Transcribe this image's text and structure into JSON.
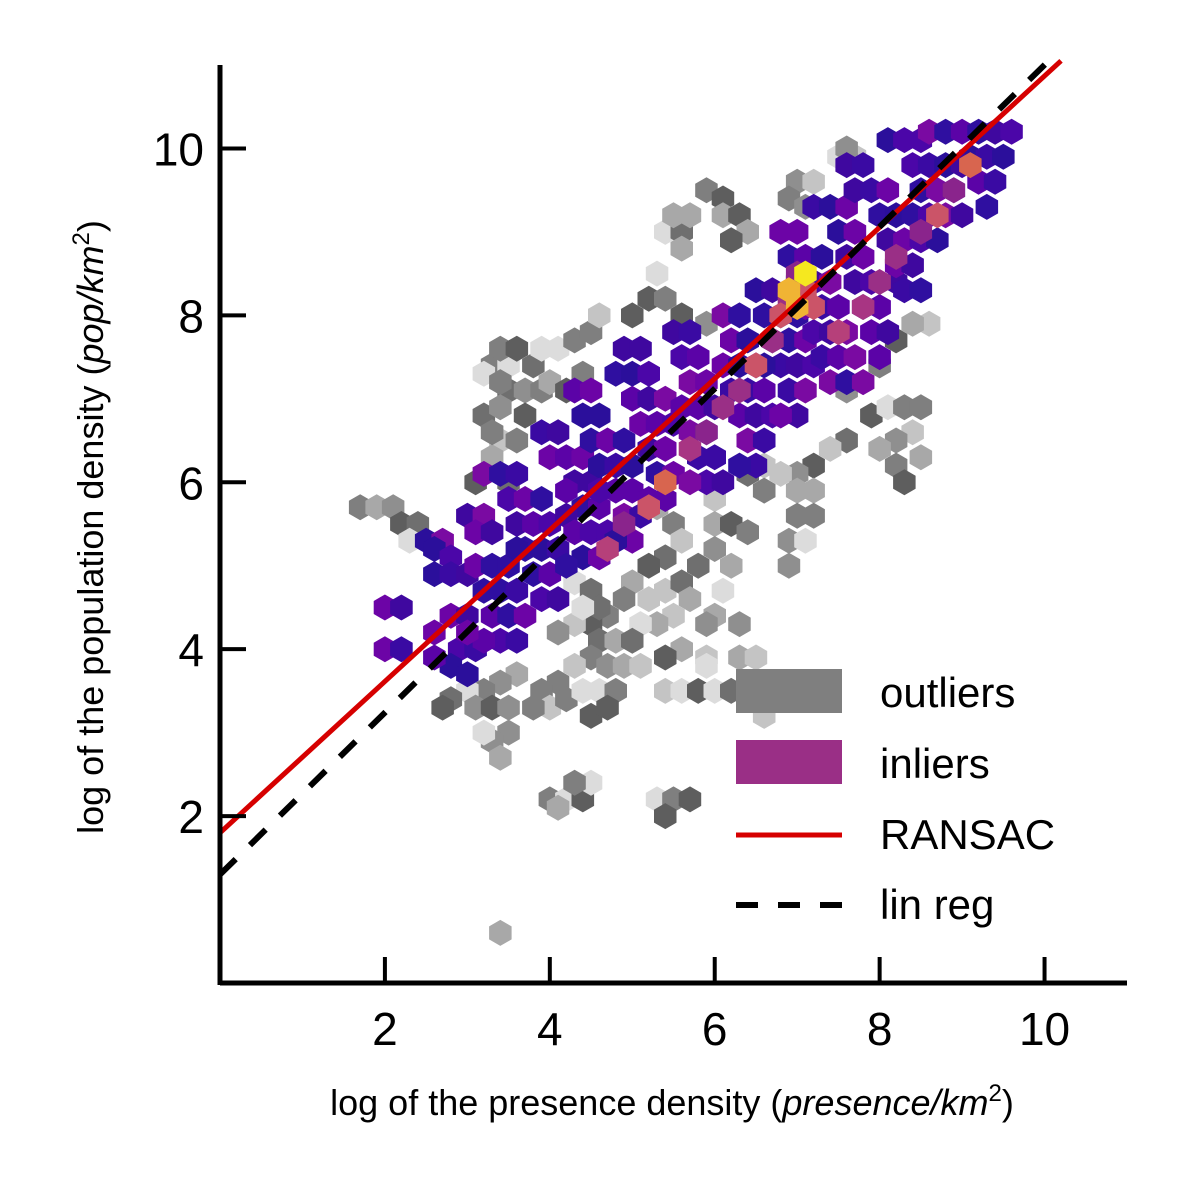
{
  "chart_data": {
    "type": "hexbin",
    "xlabel": {
      "prefix": "log of the presence density (",
      "unit": "presence/km",
      "exp": "2",
      "suffix": ")"
    },
    "ylabel": {
      "prefix": "log of the population density (",
      "unit": "pop/km",
      "exp": "2",
      "suffix": ")"
    },
    "xlim": [
      0,
      11
    ],
    "ylim": [
      0,
      11
    ],
    "xticks": [
      "2",
      "4",
      "6",
      "8",
      "10"
    ],
    "yticks": [
      "2",
      "4",
      "6",
      "8",
      "10"
    ],
    "grid": false,
    "legend": {
      "placement": "bottom-right",
      "entries": [
        {
          "label": "outliers",
          "kind": "patch",
          "color": "#7f7f7f"
        },
        {
          "label": "inliers",
          "kind": "patch",
          "color": "#9a2f86"
        },
        {
          "label": "RANSAC",
          "kind": "line",
          "color": "#d60000"
        },
        {
          "label": "lin reg",
          "kind": "dashed-line",
          "color": "#000000"
        }
      ]
    },
    "lines": [
      {
        "name": "RANSAC",
        "color": "#d60000",
        "x": [
          0,
          10.2
        ],
        "y": [
          1.8,
          11.05
        ]
      },
      {
        "name": "lin reg",
        "color": "#000000",
        "x": [
          0,
          10.05
        ],
        "y": [
          1.3,
          11.05
        ]
      }
    ],
    "inliers": [
      [
        2.0,
        4.5
      ],
      [
        2.2,
        4.5
      ],
      [
        2.0,
        4.0
      ],
      [
        2.2,
        4.0
      ],
      [
        2.5,
        5.3
      ],
      [
        2.7,
        5.3
      ],
      [
        2.6,
        5.2
      ],
      [
        2.8,
        5.1
      ],
      [
        2.6,
        4.9
      ],
      [
        2.8,
        4.9
      ],
      [
        3.0,
        4.9
      ],
      [
        2.6,
        4.2
      ],
      [
        2.8,
        4.4
      ],
      [
        3.0,
        4.4
      ],
      [
        2.9,
        4.0
      ],
      [
        3.1,
        4.0
      ],
      [
        2.8,
        3.8
      ],
      [
        3.0,
        3.7
      ],
      [
        2.6,
        3.9
      ],
      [
        3.0,
        5.6
      ],
      [
        3.2,
        5.6
      ],
      [
        3.1,
        5.4
      ],
      [
        3.3,
        5.4
      ],
      [
        3.1,
        5.0
      ],
      [
        3.3,
        5.0
      ],
      [
        3.5,
        5.0
      ],
      [
        3.2,
        4.7
      ],
      [
        3.4,
        4.7
      ],
      [
        3.6,
        4.7
      ],
      [
        3.3,
        4.4
      ],
      [
        3.5,
        4.4
      ],
      [
        3.7,
        4.4
      ],
      [
        3.4,
        4.1
      ],
      [
        3.6,
        4.1
      ],
      [
        3.2,
        4.1
      ],
      [
        3.0,
        4.2
      ],
      [
        3.2,
        6.1
      ],
      [
        3.4,
        6.1
      ],
      [
        3.6,
        6.1
      ],
      [
        3.5,
        5.8
      ],
      [
        3.7,
        5.8
      ],
      [
        3.9,
        5.8
      ],
      [
        3.6,
        5.5
      ],
      [
        3.8,
        5.5
      ],
      [
        4.0,
        5.5
      ],
      [
        3.7,
        5.2
      ],
      [
        3.9,
        5.2
      ],
      [
        4.1,
        5.2
      ],
      [
        3.8,
        4.9
      ],
      [
        4.0,
        4.9
      ],
      [
        3.9,
        4.6
      ],
      [
        4.1,
        4.6
      ],
      [
        3.6,
        5.2
      ],
      [
        3.9,
        6.6
      ],
      [
        4.1,
        6.6
      ],
      [
        4.0,
        6.3
      ],
      [
        4.2,
        6.3
      ],
      [
        4.4,
        6.3
      ],
      [
        4.3,
        6.0
      ],
      [
        4.5,
        6.0
      ],
      [
        4.2,
        5.9
      ],
      [
        4.4,
        5.7
      ],
      [
        4.6,
        5.7
      ],
      [
        4.2,
        5.6
      ],
      [
        4.3,
        5.4
      ],
      [
        4.5,
        5.4
      ],
      [
        4.7,
        5.4
      ],
      [
        4.4,
        5.1
      ],
      [
        4.6,
        5.1
      ],
      [
        4.2,
        5.0
      ],
      [
        4.3,
        7.1
      ],
      [
        4.5,
        7.1
      ],
      [
        4.4,
        6.8
      ],
      [
        4.6,
        6.8
      ],
      [
        4.5,
        6.5
      ],
      [
        4.7,
        6.5
      ],
      [
        4.9,
        6.5
      ],
      [
        4.6,
        6.2
      ],
      [
        4.8,
        6.2
      ],
      [
        5.0,
        6.2
      ],
      [
        4.8,
        5.9
      ],
      [
        5.0,
        5.9
      ],
      [
        4.9,
        5.6
      ],
      [
        5.1,
        5.6
      ],
      [
        5.0,
        5.3
      ],
      [
        4.8,
        5.3
      ],
      [
        4.6,
        5.9
      ],
      [
        4.9,
        7.6
      ],
      [
        5.1,
        7.6
      ],
      [
        4.8,
        7.3
      ],
      [
        5.0,
        7.3
      ],
      [
        5.2,
        7.3
      ],
      [
        5.0,
        7.0
      ],
      [
        5.2,
        7.0
      ],
      [
        5.4,
        7.0
      ],
      [
        5.1,
        6.7
      ],
      [
        5.3,
        6.7
      ],
      [
        5.5,
        6.7
      ],
      [
        5.2,
        6.4
      ],
      [
        5.4,
        6.4
      ],
      [
        5.3,
        6.1
      ],
      [
        5.5,
        6.1
      ],
      [
        5.4,
        5.8
      ],
      [
        5.2,
        5.8
      ],
      [
        5.5,
        7.8
      ],
      [
        5.7,
        7.8
      ],
      [
        5.6,
        7.5
      ],
      [
        5.8,
        7.5
      ],
      [
        5.7,
        7.2
      ],
      [
        5.9,
        7.2
      ],
      [
        5.6,
        6.9
      ],
      [
        5.8,
        6.9
      ],
      [
        6.0,
        6.9
      ],
      [
        5.7,
        6.6
      ],
      [
        5.9,
        6.6
      ],
      [
        5.8,
        6.3
      ],
      [
        6.0,
        6.3
      ],
      [
        5.9,
        6.0
      ],
      [
        6.1,
        6.0
      ],
      [
        5.7,
        6.0
      ],
      [
        6.1,
        8.0
      ],
      [
        6.3,
        8.0
      ],
      [
        6.2,
        7.7
      ],
      [
        6.4,
        7.7
      ],
      [
        6.1,
        7.4
      ],
      [
        6.3,
        7.4
      ],
      [
        6.5,
        7.4
      ],
      [
        6.2,
        7.1
      ],
      [
        6.4,
        7.1
      ],
      [
        6.6,
        7.1
      ],
      [
        6.3,
        6.8
      ],
      [
        6.5,
        6.8
      ],
      [
        6.4,
        6.5
      ],
      [
        6.6,
        6.5
      ],
      [
        6.5,
        6.2
      ],
      [
        6.3,
        6.2
      ],
      [
        6.7,
        6.8
      ],
      [
        6.5,
        8.3
      ],
      [
        6.7,
        8.3
      ],
      [
        6.6,
        8.0
      ],
      [
        6.8,
        8.0
      ],
      [
        7.0,
        8.0
      ],
      [
        6.7,
        7.7
      ],
      [
        6.9,
        7.7
      ],
      [
        7.1,
        7.7
      ],
      [
        6.8,
        7.4
      ],
      [
        7.0,
        7.4
      ],
      [
        7.2,
        7.4
      ],
      [
        6.9,
        7.1
      ],
      [
        7.1,
        7.1
      ],
      [
        7.0,
        6.8
      ],
      [
        6.6,
        7.4
      ],
      [
        6.8,
        6.8
      ],
      [
        6.8,
        9.0
      ],
      [
        7.0,
        9.0
      ],
      [
        6.9,
        8.7
      ],
      [
        7.1,
        8.7
      ],
      [
        7.3,
        8.7
      ],
      [
        7.0,
        8.4
      ],
      [
        7.2,
        8.4
      ],
      [
        7.4,
        8.4
      ],
      [
        7.1,
        8.1
      ],
      [
        7.3,
        8.1
      ],
      [
        7.5,
        8.1
      ],
      [
        7.2,
        7.8
      ],
      [
        7.4,
        7.8
      ],
      [
        7.6,
        7.8
      ],
      [
        7.3,
        7.5
      ],
      [
        7.5,
        7.5
      ],
      [
        7.7,
        7.5
      ],
      [
        7.4,
        7.2
      ],
      [
        7.6,
        7.2
      ],
      [
        7.8,
        7.2
      ],
      [
        7.2,
        9.3
      ],
      [
        7.4,
        9.3
      ],
      [
        7.6,
        9.3
      ],
      [
        7.5,
        9.0
      ],
      [
        7.7,
        9.0
      ],
      [
        7.6,
        8.7
      ],
      [
        7.8,
        8.7
      ],
      [
        7.7,
        8.4
      ],
      [
        7.9,
        8.4
      ],
      [
        7.8,
        8.1
      ],
      [
        8.0,
        8.1
      ],
      [
        7.9,
        7.8
      ],
      [
        8.1,
        7.8
      ],
      [
        8.0,
        7.5
      ],
      [
        8.2,
        8.4
      ],
      [
        7.6,
        9.8
      ],
      [
        7.8,
        9.8
      ],
      [
        7.7,
        9.5
      ],
      [
        7.9,
        9.5
      ],
      [
        8.1,
        9.5
      ],
      [
        8.0,
        9.2
      ],
      [
        8.2,
        9.2
      ],
      [
        8.4,
        9.2
      ],
      [
        8.1,
        8.9
      ],
      [
        8.3,
        8.9
      ],
      [
        8.5,
        8.9
      ],
      [
        8.2,
        8.6
      ],
      [
        8.4,
        8.6
      ],
      [
        8.3,
        8.3
      ],
      [
        8.5,
        8.3
      ],
      [
        8.1,
        10.1
      ],
      [
        8.3,
        10.1
      ],
      [
        8.5,
        10.1
      ],
      [
        8.4,
        9.8
      ],
      [
        8.6,
        9.8
      ],
      [
        8.8,
        9.8
      ],
      [
        8.5,
        9.5
      ],
      [
        8.7,
        9.5
      ],
      [
        8.9,
        9.5
      ],
      [
        8.6,
        9.2
      ],
      [
        8.8,
        9.2
      ],
      [
        9.0,
        9.2
      ],
      [
        8.7,
        8.9
      ],
      [
        8.6,
        10.2
      ],
      [
        8.8,
        10.2
      ],
      [
        9.0,
        10.2
      ],
      [
        9.2,
        10.2
      ],
      [
        9.4,
        10.2
      ],
      [
        9.6,
        10.2
      ],
      [
        9.1,
        9.9
      ],
      [
        9.3,
        9.9
      ],
      [
        9.5,
        9.9
      ],
      [
        9.2,
        9.6
      ],
      [
        9.4,
        9.6
      ],
      [
        9.3,
        9.3
      ],
      [
        9.0,
        9.8
      ]
    ],
    "inlier_hot": [
      [
        7.0,
        8.5
      ],
      [
        7.1,
        8.3
      ],
      [
        6.9,
        8.2
      ],
      [
        6.8,
        8.0
      ],
      [
        7.2,
        8.1
      ],
      [
        6.7,
        7.7
      ],
      [
        6.5,
        7.4
      ],
      [
        6.3,
        7.1
      ],
      [
        6.1,
        6.9
      ],
      [
        5.9,
        6.6
      ],
      [
        5.7,
        6.4
      ],
      [
        8.9,
        9.5
      ],
      [
        8.7,
        9.2
      ],
      [
        8.5,
        9.0
      ],
      [
        9.1,
        9.8
      ],
      [
        8.2,
        8.7
      ],
      [
        8.0,
        8.4
      ],
      [
        7.8,
        8.1
      ],
      [
        7.5,
        7.8
      ],
      [
        5.4,
        6.0
      ],
      [
        5.2,
        5.7
      ],
      [
        4.9,
        5.5
      ],
      [
        4.7,
        5.2
      ]
    ],
    "inlier_peak": [
      [
        7.1,
        8.5
      ],
      [
        6.9,
        8.3
      ],
      [
        7.0,
        8.1
      ]
    ],
    "outliers": [
      [
        1.7,
        5.7
      ],
      [
        1.9,
        5.7
      ],
      [
        2.1,
        5.7
      ],
      [
        2.2,
        5.5
      ],
      [
        2.4,
        5.5
      ],
      [
        2.3,
        5.3
      ],
      [
        3.3,
        7.4
      ],
      [
        3.5,
        7.4
      ],
      [
        3.4,
        7.6
      ],
      [
        3.6,
        7.6
      ],
      [
        3.5,
        7.1
      ],
      [
        3.7,
        7.1
      ],
      [
        3.9,
        7.1
      ],
      [
        3.8,
        7.4
      ],
      [
        3.2,
        7.3
      ],
      [
        3.4,
        7.2
      ],
      [
        3.4,
        6.5
      ],
      [
        3.6,
        6.5
      ],
      [
        3.2,
        6.8
      ],
      [
        3.4,
        6.9
      ],
      [
        3.7,
        6.8
      ],
      [
        3.3,
        6.3
      ],
      [
        3.1,
        6.0
      ],
      [
        3.5,
        6.0
      ],
      [
        3.3,
        6.6
      ],
      [
        3.9,
        7.6
      ],
      [
        4.1,
        7.6
      ],
      [
        4.3,
        7.7
      ],
      [
        4.5,
        7.8
      ],
      [
        4.6,
        8.0
      ],
      [
        4.4,
        7.3
      ],
      [
        4.0,
        7.2
      ],
      [
        4.2,
        7.1
      ],
      [
        5.2,
        8.2
      ],
      [
        5.4,
        8.2
      ],
      [
        5.0,
        8.0
      ],
      [
        5.6,
        8.0
      ],
      [
        5.9,
        7.9
      ],
      [
        5.3,
        8.5
      ],
      [
        5.4,
        9.0
      ],
      [
        5.6,
        9.0
      ],
      [
        5.5,
        9.2
      ],
      [
        5.7,
        9.2
      ],
      [
        5.6,
        8.8
      ],
      [
        5.9,
        9.5
      ],
      [
        6.1,
        9.4
      ],
      [
        6.1,
        9.2
      ],
      [
        6.3,
        9.2
      ],
      [
        6.4,
        9.0
      ],
      [
        6.2,
        8.9
      ],
      [
        7.0,
        9.6
      ],
      [
        7.2,
        9.6
      ],
      [
        6.9,
        9.4
      ],
      [
        7.1,
        9.3
      ],
      [
        7.5,
        9.9
      ],
      [
        7.7,
        9.9
      ],
      [
        7.6,
        10.0
      ],
      [
        8.6,
        7.9
      ],
      [
        8.4,
        7.9
      ],
      [
        8.2,
        7.7
      ],
      [
        8.0,
        7.4
      ],
      [
        7.8,
        7.2
      ],
      [
        7.6,
        7.1
      ],
      [
        7.9,
        6.8
      ],
      [
        8.1,
        6.9
      ],
      [
        8.3,
        6.9
      ],
      [
        8.5,
        6.9
      ],
      [
        8.4,
        6.6
      ],
      [
        8.2,
        6.5
      ],
      [
        8.0,
        6.4
      ],
      [
        8.2,
        6.2
      ],
      [
        8.3,
        6.0
      ],
      [
        8.5,
        6.3
      ],
      [
        7.6,
        6.5
      ],
      [
        7.4,
        6.4
      ],
      [
        7.2,
        6.2
      ],
      [
        7.0,
        6.1
      ],
      [
        6.8,
        6.1
      ],
      [
        6.6,
        6.2
      ],
      [
        6.4,
        6.1
      ],
      [
        6.6,
        5.9
      ],
      [
        7.0,
        5.9
      ],
      [
        7.2,
        5.9
      ],
      [
        6.0,
        5.8
      ],
      [
        6.0,
        5.5
      ],
      [
        6.2,
        5.5
      ],
      [
        6.4,
        5.4
      ],
      [
        6.0,
        5.2
      ],
      [
        6.2,
        5.0
      ],
      [
        6.1,
        4.7
      ],
      [
        6.0,
        4.4
      ],
      [
        5.3,
        5.7
      ],
      [
        5.5,
        5.5
      ],
      [
        5.6,
        5.3
      ],
      [
        5.4,
        5.1
      ],
      [
        5.2,
        5.0
      ],
      [
        5.0,
        4.8
      ],
      [
        5.2,
        4.6
      ],
      [
        5.4,
        4.7
      ],
      [
        5.6,
        4.8
      ],
      [
        5.8,
        5.0
      ],
      [
        5.7,
        4.6
      ],
      [
        5.5,
        4.4
      ],
      [
        5.3,
        4.3
      ],
      [
        5.1,
        4.3
      ],
      [
        5.9,
        4.3
      ],
      [
        4.9,
        4.6
      ],
      [
        4.7,
        4.4
      ],
      [
        4.5,
        4.3
      ],
      [
        4.3,
        4.3
      ],
      [
        4.1,
        4.2
      ],
      [
        4.6,
        4.1
      ],
      [
        4.8,
        4.1
      ],
      [
        5.0,
        4.1
      ],
      [
        4.5,
        3.9
      ],
      [
        4.7,
        3.8
      ],
      [
        4.9,
        3.8
      ],
      [
        5.1,
        3.8
      ],
      [
        4.3,
        3.8
      ],
      [
        4.1,
        3.6
      ],
      [
        3.9,
        3.5
      ],
      [
        4.0,
        3.3
      ],
      [
        4.2,
        3.4
      ],
      [
        4.4,
        3.5
      ],
      [
        4.6,
        3.5
      ],
      [
        4.8,
        3.5
      ],
      [
        4.5,
        3.2
      ],
      [
        4.7,
        3.3
      ],
      [
        3.6,
        3.7
      ],
      [
        3.4,
        3.6
      ],
      [
        3.2,
        3.5
      ],
      [
        3.0,
        3.5
      ],
      [
        2.8,
        3.4
      ],
      [
        2.7,
        3.3
      ],
      [
        3.1,
        3.3
      ],
      [
        3.3,
        3.3
      ],
      [
        3.5,
        3.3
      ],
      [
        3.8,
        3.3
      ],
      [
        3.5,
        3.0
      ],
      [
        3.3,
        2.9
      ],
      [
        3.4,
        2.7
      ],
      [
        3.2,
        3.0
      ],
      [
        4.3,
        4.8
      ],
      [
        4.5,
        4.7
      ],
      [
        4.6,
        4.5
      ],
      [
        4.4,
        4.5
      ],
      [
        5.6,
        4.0
      ],
      [
        5.4,
        3.9
      ],
      [
        5.9,
        3.9
      ],
      [
        6.3,
        3.9
      ],
      [
        6.3,
        4.3
      ],
      [
        6.5,
        3.9
      ],
      [
        6.9,
        5.3
      ],
      [
        7.1,
        5.3
      ],
      [
        7.0,
        5.6
      ],
      [
        7.2,
        5.6
      ],
      [
        6.9,
        5.0
      ],
      [
        5.4,
        3.5
      ],
      [
        5.6,
        3.5
      ],
      [
        5.8,
        3.5
      ],
      [
        6.0,
        3.5
      ],
      [
        6.2,
        3.5
      ],
      [
        5.9,
        3.8
      ],
      [
        4.0,
        2.2
      ],
      [
        4.2,
        2.2
      ],
      [
        4.4,
        2.2
      ],
      [
        4.5,
        2.4
      ],
      [
        4.3,
        2.4
      ],
      [
        4.1,
        2.1
      ],
      [
        5.3,
        2.2
      ],
      [
        5.5,
        2.2
      ],
      [
        5.7,
        2.2
      ],
      [
        5.4,
        2.0
      ],
      [
        6.5,
        3.4
      ],
      [
        6.7,
        3.4
      ],
      [
        6.9,
        3.4
      ],
      [
        6.6,
        3.2
      ],
      [
        3.4,
        0.6
      ]
    ]
  }
}
